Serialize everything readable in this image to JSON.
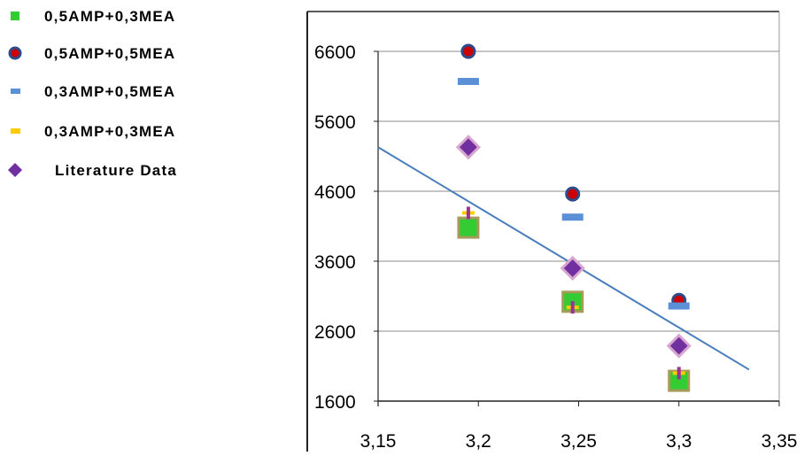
{
  "chart_data": {
    "type": "scatter",
    "title": "",
    "xlabel": "",
    "ylabel": "",
    "xlim": [
      3.15,
      3.35
    ],
    "ylim": [
      1600,
      6600
    ],
    "x_ticks": [
      "3,15",
      "3,2",
      "3,25",
      "3,3",
      "3,35"
    ],
    "y_ticks": [
      "1600",
      "2600",
      "3600",
      "4600",
      "5600",
      "6600"
    ],
    "grid": "horizontal",
    "legend_position": "left",
    "series": [
      {
        "name": "0,5AMP+0,3MEA",
        "color": "#33cc33",
        "edge_color": "#a89a5a",
        "marker": "square",
        "points": [
          [
            3.195,
            4080
          ],
          [
            3.247,
            3020
          ],
          [
            3.3,
            1890
          ]
        ]
      },
      {
        "name": "0,5AMP+0,5MEA",
        "color": "#cc0000",
        "edge_color": "#2e4a8a",
        "marker": "circle",
        "points": [
          [
            3.195,
            6600
          ],
          [
            3.247,
            4560
          ],
          [
            3.3,
            3040
          ]
        ]
      },
      {
        "name": "0,3AMP+0,5MEA",
        "color": "#5b8fd6",
        "edge_color": "#5b8fd6",
        "marker": "dash",
        "points": [
          [
            3.195,
            6170
          ],
          [
            3.247,
            4230
          ],
          [
            3.3,
            2960
          ]
        ]
      },
      {
        "name": "0,3AMP+0,3MEA",
        "color": "#ffcc00",
        "edge_color": "#993399",
        "marker": "plus",
        "points": [
          [
            3.195,
            4290
          ],
          [
            3.247,
            2940
          ],
          [
            3.3,
            2000
          ]
        ]
      },
      {
        "name": "Literature Data",
        "color": "#7030a0",
        "edge_color": "#d9a6d0",
        "marker": "diamond",
        "points": [
          [
            3.195,
            5230
          ],
          [
            3.247,
            3500
          ],
          [
            3.3,
            2390
          ]
        ]
      }
    ],
    "trendline": {
      "color": "#4a7ebb",
      "points": [
        [
          3.15,
          5230
        ],
        [
          3.335,
          2050
        ]
      ]
    }
  }
}
